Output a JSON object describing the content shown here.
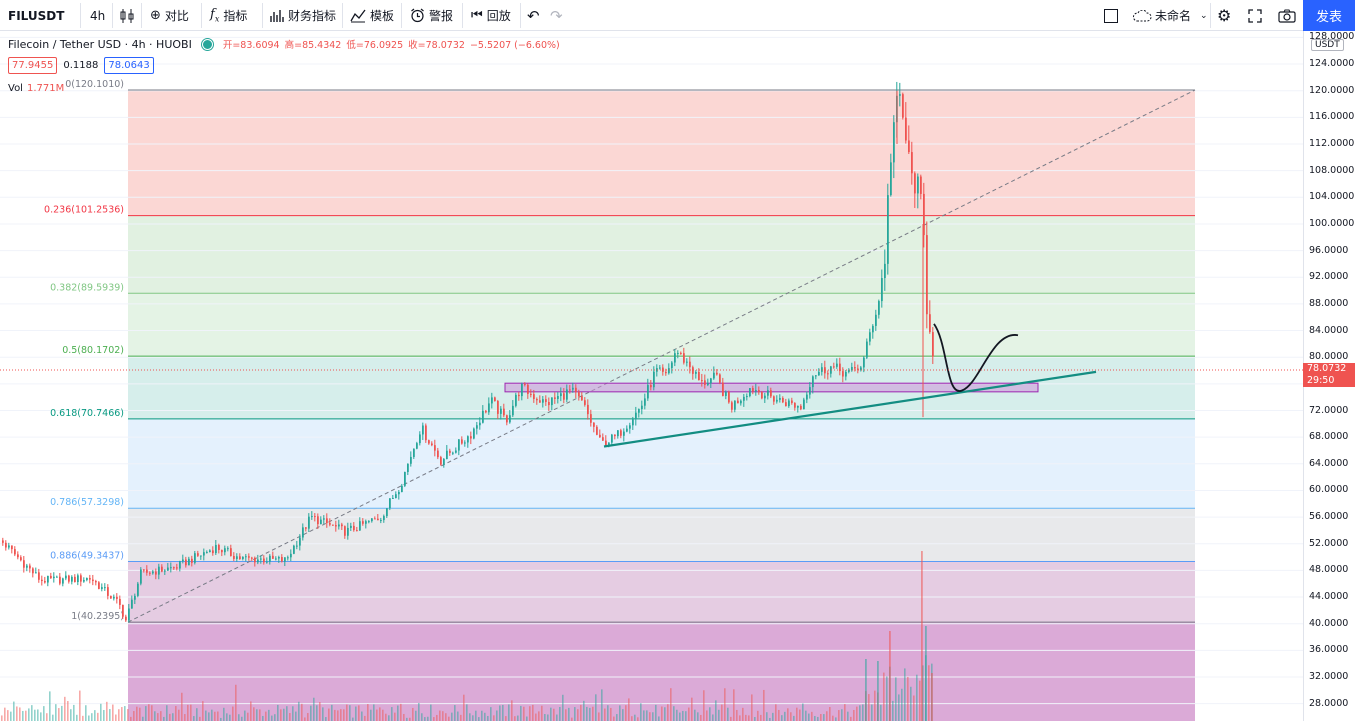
{
  "toolbar": {
    "symbol": "FILUSDT",
    "interval": "4h",
    "compare_label": "对比",
    "indicators_label": "指标",
    "financials_label": "财务指标",
    "templates_label": "模板",
    "alert_label": "警报",
    "replay_label": "回放",
    "layout_name": "未命名",
    "publish_label": "发表"
  },
  "legend": {
    "title": "Filecoin / Tether USD · 4h · HUOBI",
    "open": "开=83.6094",
    "high": "高=85.4342",
    "low": "低=76.0925",
    "close": "收=78.0732",
    "change": "−5.5207 (−6.60%)",
    "bid": "77.9455",
    "spread": "0.1188",
    "ask": "78.0643",
    "vol_label": "Vol",
    "vol_value": "1.771M"
  },
  "axis": {
    "currency": "USDT",
    "ticks": [
      "128.0000",
      "124.0000",
      "120.0000",
      "116.0000",
      "112.0000",
      "108.0000",
      "104.0000",
      "100.0000",
      "96.0000",
      "92.0000",
      "88.0000",
      "84.0000",
      "80.0000",
      "76.0000",
      "72.0000",
      "68.0000",
      "64.0000",
      "60.0000",
      "56.0000",
      "52.0000",
      "48.0000",
      "44.0000",
      "40.0000",
      "36.0000",
      "32.0000",
      "28.0000"
    ],
    "price_tag": "78.0732",
    "countdown": "29:50"
  },
  "colors": {
    "up": "#26a69a",
    "down": "#ef5350",
    "trendline": "#138d82",
    "zone": "#9c27b0",
    "fib_0": "#787b86",
    "fib_0236": "#f23645",
    "fib_0382": "#81c784",
    "fib_05": "#4caf50",
    "fib_0618": "#089981",
    "fib_0786": "#64b5f6",
    "fib_0886": "#5b9cf6",
    "fib_1": "#787b86"
  },
  "chart_data": {
    "type": "candlestick",
    "symbol": "FILUSDT",
    "interval": "4h",
    "exchange": "HUOBI",
    "last_price": 78.0732,
    "fibonacci": [
      {
        "ratio": 0,
        "label": "0(120.1010)",
        "price": 120.101
      },
      {
        "ratio": 0.236,
        "label": "0.236(101.2536)",
        "price": 101.2536
      },
      {
        "ratio": 0.382,
        "label": "0.382(89.5939)",
        "price": 89.5939
      },
      {
        "ratio": 0.5,
        "label": "0.5(80.1702)",
        "price": 80.1702
      },
      {
        "ratio": 0.618,
        "label": "0.618(70.7466)",
        "price": 70.7466
      },
      {
        "ratio": 0.786,
        "label": "0.786(57.3298)",
        "price": 57.3298
      },
      {
        "ratio": 0.886,
        "label": "0.886(49.3437)",
        "price": 49.3437
      },
      {
        "ratio": 1,
        "label": "1(40.2395)",
        "price": 40.2395
      }
    ],
    "support_zone": {
      "low": 74.8,
      "high": 76.1
    },
    "price_path": [
      [
        0,
        52.5
      ],
      [
        40,
        46.5
      ],
      [
        90,
        46.8
      ],
      [
        118,
        43.0
      ],
      [
        125,
        40.5
      ],
      [
        140,
        47.5
      ],
      [
        175,
        48.5
      ],
      [
        215,
        51.5
      ],
      [
        240,
        49.8
      ],
      [
        285,
        49.5
      ],
      [
        310,
        56.0
      ],
      [
        345,
        53.8
      ],
      [
        380,
        56.0
      ],
      [
        400,
        61.0
      ],
      [
        420,
        69.5
      ],
      [
        440,
        64.5
      ],
      [
        470,
        68.5
      ],
      [
        490,
        73.5
      ],
      [
        505,
        70.5
      ],
      [
        520,
        75.5
      ],
      [
        545,
        73.0
      ],
      [
        570,
        75.0
      ],
      [
        582,
        73.0
      ],
      [
        600,
        67.0
      ],
      [
        615,
        68.0
      ],
      [
        640,
        72.5
      ],
      [
        655,
        78.0
      ],
      [
        665,
        77.0
      ],
      [
        675,
        81.0
      ],
      [
        690,
        78.5
      ],
      [
        700,
        76.0
      ],
      [
        715,
        77.0
      ],
      [
        730,
        72.5
      ],
      [
        750,
        75.5
      ],
      [
        770,
        74.0
      ],
      [
        800,
        72.5
      ],
      [
        812,
        77.5
      ],
      [
        830,
        78.5
      ],
      [
        848,
        77.5
      ],
      [
        862,
        79.0
      ],
      [
        868,
        83.0
      ],
      [
        878,
        88.5
      ],
      [
        884,
        95.0
      ],
      [
        889,
        109.0
      ],
      [
        894,
        116.5
      ],
      [
        899,
        118.5
      ],
      [
        904,
        114.0
      ],
      [
        910,
        107.0
      ],
      [
        916,
        106.0
      ],
      [
        922,
        101.0
      ],
      [
        926,
        88.0
      ],
      [
        930,
        84.0
      ],
      [
        935,
        78.0
      ]
    ]
  }
}
